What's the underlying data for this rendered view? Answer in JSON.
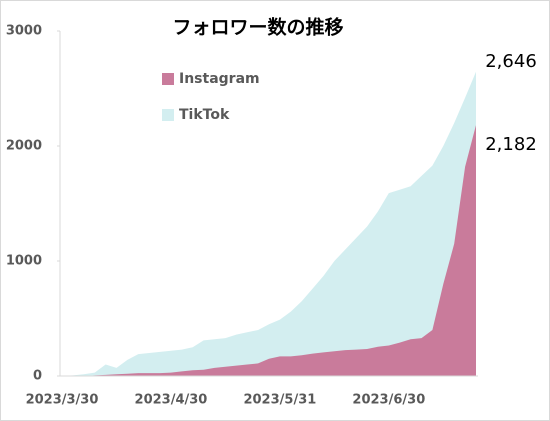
{
  "chart_data": {
    "type": "area",
    "title": "フォロワー数の推移",
    "categories": [
      "2023/3/30",
      null,
      null,
      null,
      null,
      null,
      null,
      null,
      null,
      null,
      "2023/4/30",
      null,
      null,
      null,
      null,
      null,
      null,
      null,
      null,
      null,
      "2023/5/31",
      null,
      null,
      null,
      null,
      null,
      null,
      null,
      null,
      null,
      "2023/6/30",
      null,
      null,
      null,
      null,
      null,
      null,
      null,
      null
    ],
    "series": [
      {
        "name": "TikTok",
        "color": "#d3eef0",
        "values": [
          0,
          5,
          15,
          30,
          100,
          70,
          140,
          190,
          200,
          210,
          220,
          230,
          250,
          310,
          320,
          330,
          360,
          380,
          400,
          450,
          490,
          560,
          650,
          760,
          870,
          1000,
          1100,
          1200,
          1300,
          1430,
          1590,
          1620,
          1650,
          1740,
          1830,
          2000,
          2200,
          2420,
          2646
        ],
        "value_labels": [
          null,
          null,
          null,
          null,
          null,
          null,
          null,
          null,
          null,
          null,
          null,
          null,
          null,
          null,
          null,
          null,
          null,
          null,
          null,
          null,
          null,
          null,
          null,
          null,
          null,
          null,
          null,
          null,
          null,
          null,
          null,
          null,
          null,
          null,
          null,
          null,
          null,
          null,
          "2,646"
        ]
      },
      {
        "name": "Instagram",
        "color": "#c97b9b",
        "values": [
          0,
          0,
          0,
          5,
          10,
          15,
          20,
          25,
          25,
          25,
          30,
          40,
          50,
          55,
          70,
          80,
          90,
          100,
          110,
          150,
          170,
          170,
          180,
          195,
          205,
          215,
          225,
          230,
          235,
          255,
          265,
          290,
          320,
          330,
          400,
          800,
          1150,
          1820,
          2182
        ],
        "value_labels": [
          null,
          null,
          null,
          null,
          null,
          null,
          null,
          null,
          null,
          null,
          null,
          null,
          null,
          null,
          null,
          null,
          null,
          null,
          null,
          null,
          null,
          null,
          null,
          null,
          null,
          null,
          null,
          null,
          null,
          null,
          null,
          null,
          null,
          null,
          null,
          null,
          null,
          null,
          "2,182"
        ]
      }
    ],
    "legend_order": [
      1,
      0
    ],
    "ylim": [
      0,
      3000
    ],
    "yticks": [
      0,
      1000,
      2000,
      3000
    ]
  }
}
